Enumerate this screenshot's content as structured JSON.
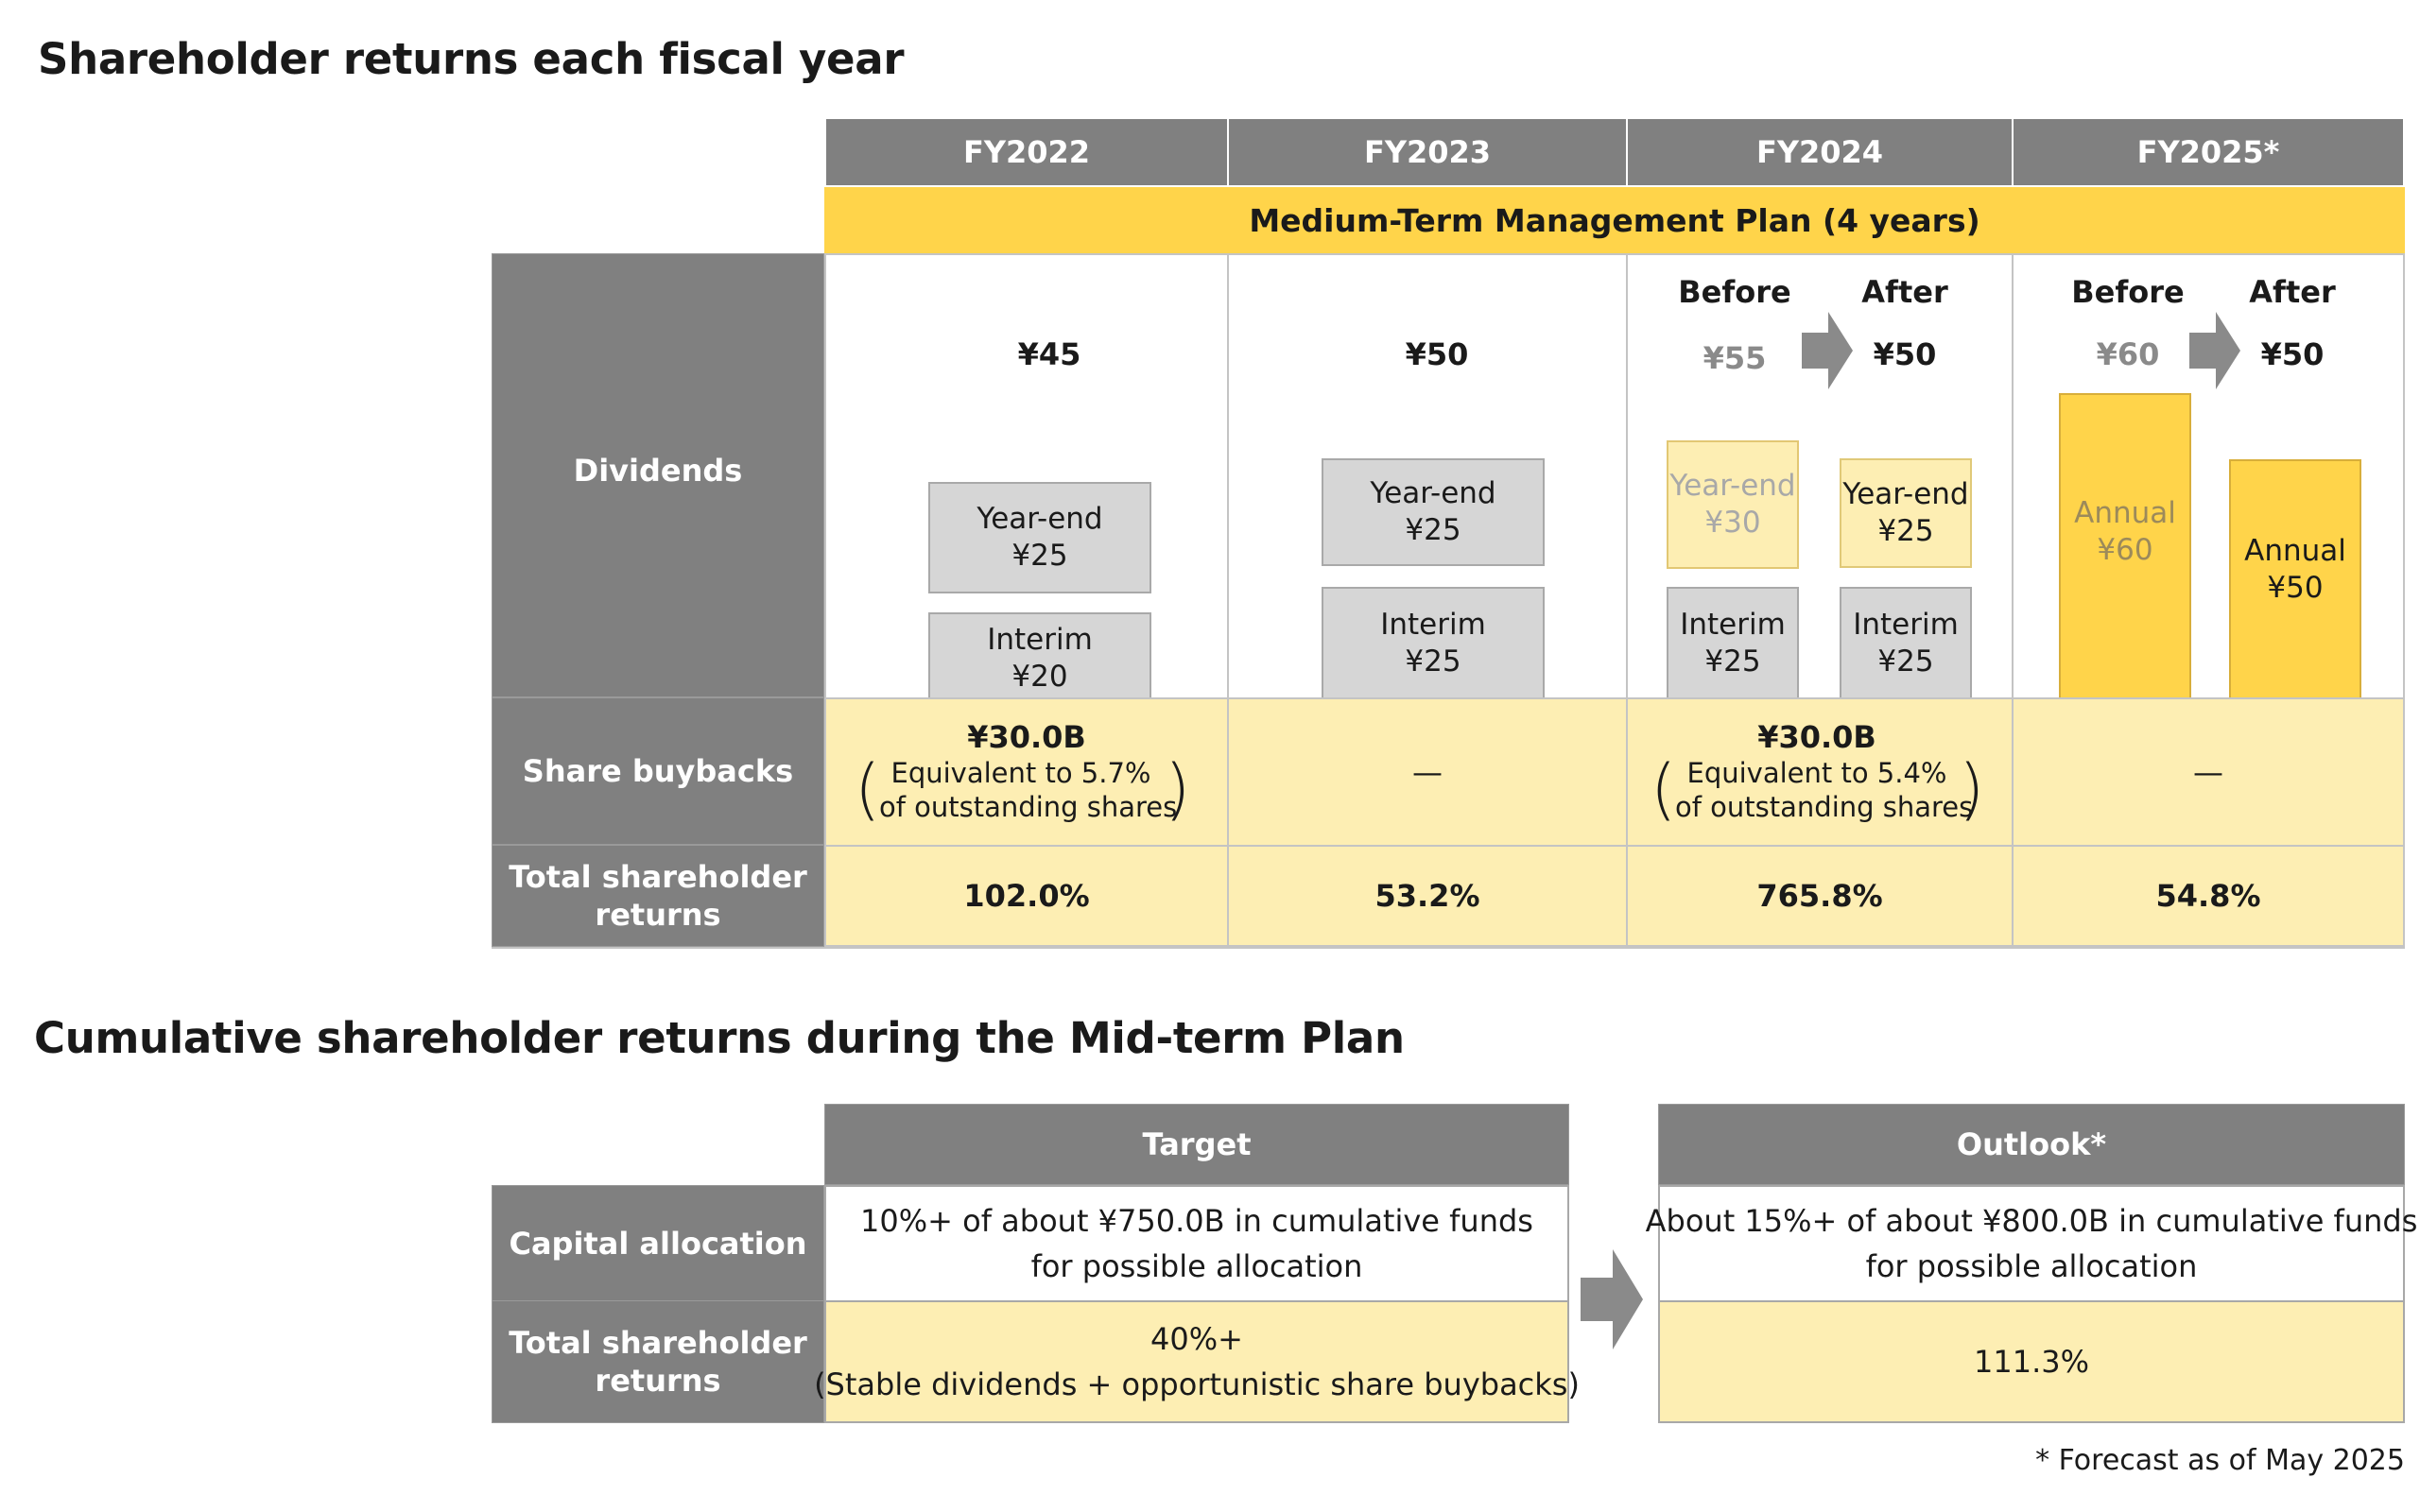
{
  "section1": {
    "title": "Shareholder returns each fiscal year",
    "years": [
      "FY2022",
      "FY2023",
      "FY2024",
      "FY2025*"
    ],
    "plan_label": "Medium-Term Management Plan (4 years)",
    "row_labels": {
      "dividends": "Dividends",
      "buybacks": "Share buybacks",
      "total_line1": "Total shareholder",
      "total_line2": "returns"
    },
    "before_label": "Before",
    "after_label": "After",
    "fy2022": {
      "total": "¥45",
      "yearend_l1": "Year-end",
      "yearend_l2": "¥25",
      "interim_l1": "Interim",
      "interim_l2": "¥20",
      "buyback": "¥30.0B",
      "buyback_l1": "Equivalent to 5.7%",
      "buyback_l2": "of outstanding shares",
      "total_returns": "102.0%"
    },
    "fy2023": {
      "total": "¥50",
      "yearend_l1": "Year-end",
      "yearend_l2": "¥25",
      "interim_l1": "Interim",
      "interim_l2": "¥25",
      "buyback": "—",
      "total_returns": "53.2%"
    },
    "fy2024": {
      "before_total": "¥55",
      "after_total": "¥50",
      "before_yearend_l1": "Year-end",
      "before_yearend_l2": "¥30",
      "before_interim_l1": "Interim",
      "before_interim_l2": "¥25",
      "after_yearend_l1": "Year-end",
      "after_yearend_l2": "¥25",
      "after_interim_l1": "Interim",
      "after_interim_l2": "¥25",
      "buyback": "¥30.0B",
      "buyback_l1": "Equivalent to 5.4%",
      "buyback_l2": "of outstanding shares",
      "total_returns": "765.8%"
    },
    "fy2025": {
      "before_total": "¥60",
      "after_total": "¥50",
      "before_annual_l1": "Annual",
      "before_annual_l2": "¥60",
      "after_annual_l1": "Annual",
      "after_annual_l2": "¥50",
      "buyback": "—",
      "total_returns": "54.8%"
    }
  },
  "section2": {
    "title": "Cumulative shareholder returns during the Mid-term Plan",
    "target_header": "Target",
    "outlook_header": "Outlook*",
    "capital_label": "Capital allocation",
    "total_label_l1": "Total shareholder",
    "total_label_l2": "returns",
    "target_capital_l1": "10%+ of about ¥750.0B in cumulative funds",
    "target_capital_l2": "for possible allocation",
    "target_total_l1": "40%+",
    "target_total_l2": "(Stable dividends + opportunistic share buybacks)",
    "outlook_capital_l1": "About 15%+ of about ¥800.0B in cumulative funds",
    "outlook_capital_l2": "for possible allocation",
    "outlook_total": "111.3%"
  },
  "footnote": "* Forecast as of May 2025",
  "colors": {
    "header_gray": "#808080",
    "plan_yellow": "#ffd44a",
    "light_yellow": "#fdeeb3",
    "box_gray": "#d6d6d6"
  }
}
